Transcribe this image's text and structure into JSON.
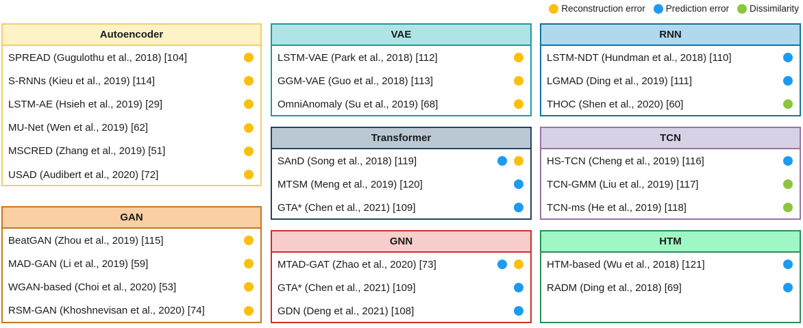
{
  "colors": {
    "reconstruction": "#fbbf0d",
    "prediction": "#1d9bf0",
    "dissimilarity": "#8cc63f"
  },
  "legend": [
    {
      "key": "reconstruction",
      "label": "Reconstruction error"
    },
    {
      "key": "prediction",
      "label": "Prediction error"
    },
    {
      "key": "dissimilarity",
      "label": "Dissimilarity"
    }
  ],
  "boxes": {
    "autoencoder": {
      "title": "Autoencoder",
      "border": "#f2cf6a",
      "header_bg": "#fef3c7",
      "items": [
        {
          "label": "SPREAD (Gugulothu et al., 2018) [104]",
          "dots": [
            "reconstruction"
          ]
        },
        {
          "label": "S-RNNs (Kieu et al., 2019) [114]",
          "dots": [
            "reconstruction"
          ]
        },
        {
          "label": "LSTM-AE (Hsieh et al., 2019) [29]",
          "dots": [
            "reconstruction"
          ]
        },
        {
          "label": "MU-Net (Wen et al., 2019) [62]",
          "dots": [
            "reconstruction"
          ]
        },
        {
          "label": "MSCRED (Zhang et al., 2019) [51]",
          "dots": [
            "reconstruction"
          ]
        },
        {
          "label": "USAD (Audibert et al., 2020) [72]",
          "dots": [
            "reconstruction"
          ]
        }
      ]
    },
    "gan": {
      "title": "GAN",
      "border": "#c8761e",
      "header_bg": "#f9cfa3",
      "items": [
        {
          "label": "BeatGAN (Zhou et al., 2019) [115]",
          "dots": [
            "reconstruction"
          ]
        },
        {
          "label": "MAD-GAN (Li et al., 2019) [59]",
          "dots": [
            "reconstruction"
          ]
        },
        {
          "label": "WGAN-based (Choi et al., 2020) [53]",
          "dots": [
            "reconstruction"
          ]
        },
        {
          "label": "RSM-GAN (Khoshnevisan et al., 2020) [74]",
          "dots": [
            "reconstruction"
          ]
        }
      ]
    },
    "vae": {
      "title": "VAE",
      "border": "#20999e",
      "header_bg": "#b0e3e6",
      "items": [
        {
          "label": "LSTM-VAE (Park et al., 2018) [112]",
          "dots": [
            "reconstruction"
          ]
        },
        {
          "label": "GGM-VAE (Guo et al., 2018) [113]",
          "dots": [
            "reconstruction"
          ]
        },
        {
          "label": "OmniAnomaly (Su et al., 2019) [68]",
          "dots": [
            "reconstruction"
          ]
        }
      ]
    },
    "transformer": {
      "title": "Transformer",
      "border": "#23445d",
      "header_bg": "#bac8d3",
      "items": [
        {
          "label": "SAnD (Song et al., 2018) [119]",
          "dots": [
            "prediction",
            "reconstruction"
          ]
        },
        {
          "label": "MTSM (Meng et al., 2019) [120]",
          "dots": [
            "prediction"
          ]
        },
        {
          "label": "GTA* (Chen et al., 2021) [109]",
          "dots": [
            "prediction"
          ]
        }
      ]
    },
    "gnn": {
      "title": "GNN",
      "border": "#c9302c",
      "header_bg": "#f8cecc",
      "items": [
        {
          "label": "MTAD-GAT (Zhao et al., 2020) [73]",
          "dots": [
            "prediction",
            "reconstruction"
          ]
        },
        {
          "label": "GTA* (Chen et al., 2021) [109]",
          "dots": [
            "prediction"
          ]
        },
        {
          "label": "GDN (Deng et al., 2021) [108]",
          "dots": [
            "prediction"
          ]
        }
      ]
    },
    "rnn": {
      "title": "RNN",
      "border": "#10739e",
      "header_bg": "#b1d9ee",
      "items": [
        {
          "label": "LSTM-NDT (Hundman et al., 2018) [110]",
          "dots": [
            "prediction"
          ]
        },
        {
          "label": "LGMAD (Ding et al., 2019) [111]",
          "dots": [
            "prediction"
          ]
        },
        {
          "label": "THOC (Shen et al., 2020) [60]",
          "dots": [
            "dissimilarity"
          ]
        }
      ]
    },
    "tcn": {
      "title": "TCN",
      "border": "#9673a6",
      "header_bg": "#d7d1e6",
      "items": [
        {
          "label": "HS-TCN (Cheng et al., 2019) [116]",
          "dots": [
            "prediction"
          ]
        },
        {
          "label": "TCN-GMM (Liu et al., 2019) [117]",
          "dots": [
            "dissimilarity"
          ]
        },
        {
          "label": "TCN-ms (He et al., 2019) [118]",
          "dots": [
            "dissimilarity"
          ]
        }
      ]
    },
    "htm": {
      "title": "HTM",
      "border": "#2e8b57",
      "header_bg": "#a0f7c6",
      "items": [
        {
          "label": "HTM-based (Wu et al., 2018) [121]",
          "dots": [
            "prediction"
          ]
        },
        {
          "label": "RADM (Ding et al., 2018) [69]",
          "dots": [
            "prediction"
          ]
        }
      ]
    }
  }
}
